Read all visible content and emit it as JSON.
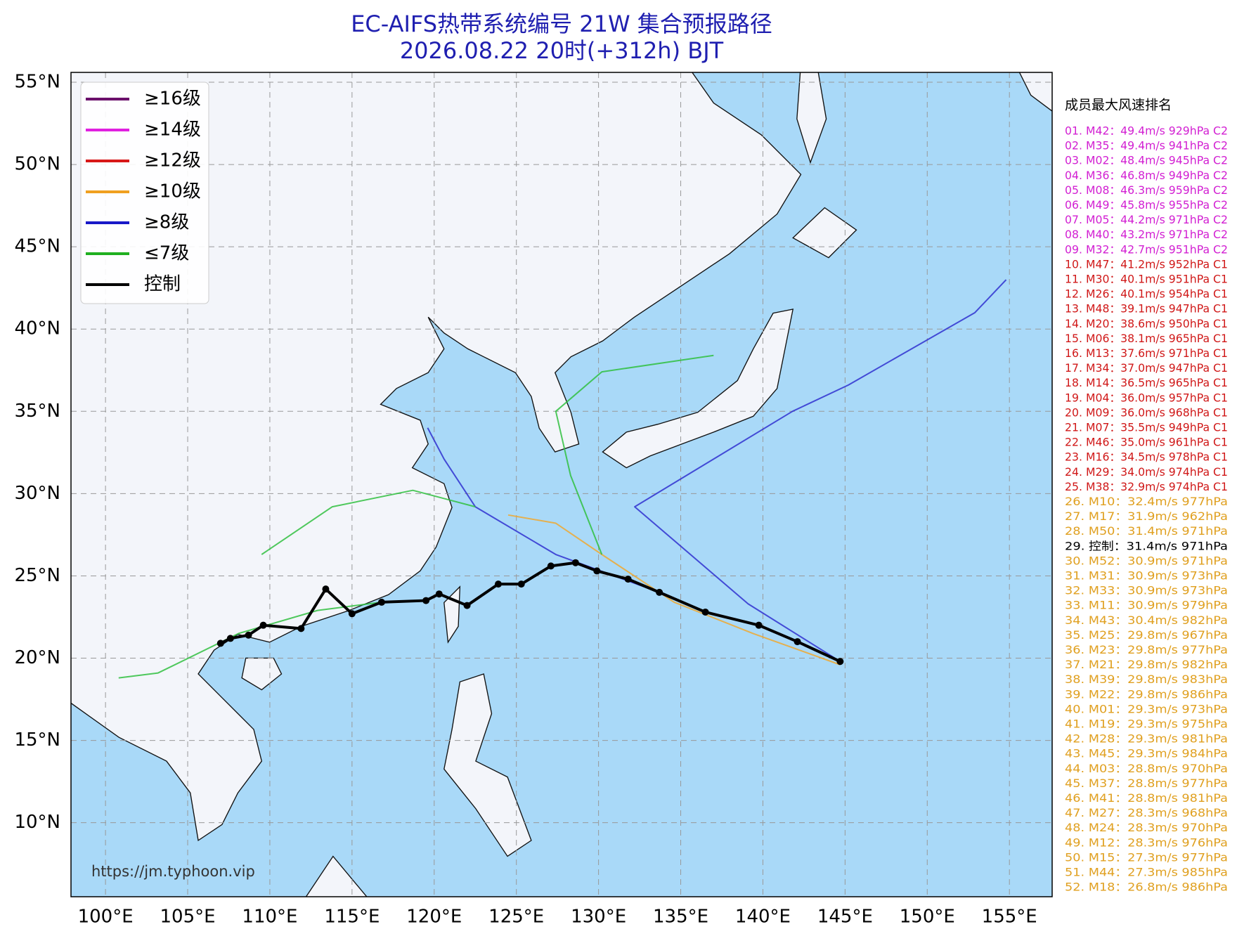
{
  "chart_data": {
    "type": "track",
    "title": "EC-AIFS热带系统编号 21W 集合预报路径",
    "subtitle": "2026.08.22 20时(+312h) BJT",
    "xlim": [
      97.9,
      157.6
    ],
    "ylim": [
      5.5,
      55.6
    ],
    "xticks": [
      {
        "value": 100,
        "label": "100°E"
      },
      {
        "value": 105,
        "label": "105°E"
      },
      {
        "value": 110,
        "label": "110°E"
      },
      {
        "value": 115,
        "label": "115°E"
      },
      {
        "value": 120,
        "label": "120°E"
      },
      {
        "value": 125,
        "label": "125°E"
      },
      {
        "value": 130,
        "label": "130°E"
      },
      {
        "value": 135,
        "label": "135°E"
      },
      {
        "value": 140,
        "label": "140°E"
      },
      {
        "value": 145,
        "label": "145°E"
      },
      {
        "value": 150,
        "label": "150°E"
      },
      {
        "value": 155,
        "label": "155°E"
      }
    ],
    "yticks": [
      {
        "value": 10,
        "label": "10°N"
      },
      {
        "value": 15,
        "label": "15°N"
      },
      {
        "value": 20,
        "label": "20°N"
      },
      {
        "value": 25,
        "label": "25°N"
      },
      {
        "value": 30,
        "label": "30°N"
      },
      {
        "value": 35,
        "label": "35°N"
      },
      {
        "value": 40,
        "label": "40°N"
      },
      {
        "value": 45,
        "label": "45°N"
      },
      {
        "value": 50,
        "label": "50°N"
      },
      {
        "value": 55,
        "label": "55°N"
      }
    ],
    "grid": true,
    "legend_entries": [
      {
        "name": "≥16级",
        "color": "#6b0f6b"
      },
      {
        "name": "≥14级",
        "color": "#e020e0"
      },
      {
        "name": "≥12级",
        "color": "#d81818"
      },
      {
        "name": "≥10级",
        "color": "#f0a020"
      },
      {
        "name": "≥8级",
        "color": "#1818c8"
      },
      {
        "name": "≤7级",
        "color": "#20b020"
      },
      {
        "name": "控制",
        "color": "#000000"
      }
    ],
    "series": [
      {
        "color": "#3030d0",
        "x": [
          144.7,
          139.1,
          132.2,
          141.8,
          145.2,
          152.9,
          154.8
        ],
        "values": [
          19.8,
          23.3,
          29.2,
          35.0,
          36.6,
          41.0,
          43.0
        ]
      },
      {
        "color": "#f0a830",
        "x": [
          144.7,
          139.4,
          134.6,
          130.2,
          127.4,
          124.5
        ],
        "values": [
          19.6,
          21.5,
          23.4,
          26.3,
          28.2,
          28.7
        ]
      },
      {
        "color": "#30c040",
        "x": [
          130.2,
          128.3,
          127.4,
          130.2,
          137.0
        ],
        "values": [
          26.3,
          31.1,
          35.0,
          37.4,
          38.4
        ]
      },
      {
        "color": "#30c040",
        "x": [
          116.8,
          112.9,
          108.1,
          103.2,
          100.8
        ],
        "values": [
          23.4,
          22.9,
          21.5,
          19.1,
          18.8
        ]
      },
      {
        "color": "#3030d0",
        "x": [
          133.7,
          127.4,
          122.5,
          120.6,
          119.6
        ],
        "values": [
          24.0,
          26.3,
          29.2,
          32.1,
          34.0
        ]
      },
      {
        "color": "#30c040",
        "x": [
          122.5,
          118.7,
          113.8,
          109.5
        ],
        "values": [
          29.2,
          30.2,
          29.2,
          26.3
        ]
      },
      {
        "name": "控制",
        "color": "#000000",
        "x": [
          144.7,
          142.1,
          139.75,
          136.5,
          133.7,
          131.8,
          129.9,
          128.6,
          127.1,
          125.3,
          123.9,
          122,
          120.3,
          119.5,
          116.8,
          115,
          113.4,
          111.9,
          109.6,
          108.7,
          107.6,
          107
        ],
        "values": [
          19.8,
          21.0,
          22.0,
          22.8,
          24.0,
          24.8,
          25.3,
          25.8,
          25.6,
          24.5,
          24.5,
          23.2,
          23.9,
          23.5,
          23.4,
          22.7,
          24.2,
          21.8,
          22.0,
          21.4,
          21.2,
          20.9
        ]
      }
    ],
    "source": "https://jm.typhoon.vip",
    "ranking": {
      "title": "成员最大风速排名",
      "items": [
        {
          "text": "01. M42：49.4m/s 929hPa C2",
          "color": "#d21fd2"
        },
        {
          "text": "02. M35：49.4m/s 941hPa C2",
          "color": "#d21fd2"
        },
        {
          "text": "03. M02：48.4m/s 945hPa C2",
          "color": "#d21fd2"
        },
        {
          "text": "04. M36：46.8m/s 949hPa C2",
          "color": "#d21fd2"
        },
        {
          "text": "05. M08：46.3m/s 959hPa C2",
          "color": "#d21fd2"
        },
        {
          "text": "06. M49：45.8m/s 955hPa C2",
          "color": "#d21fd2"
        },
        {
          "text": "07. M05：44.2m/s 971hPa C2",
          "color": "#d21fd2"
        },
        {
          "text": "08. M40：43.2m/s 971hPa C2",
          "color": "#d21fd2"
        },
        {
          "text": "09. M32：42.7m/s 951hPa C2",
          "color": "#d21fd2"
        },
        {
          "text": "10. M47：41.2m/s 952hPa C1",
          "color": "#d01818"
        },
        {
          "text": "11. M30：40.1m/s 951hPa C1",
          "color": "#d01818"
        },
        {
          "text": "12. M26：40.1m/s 954hPa C1",
          "color": "#d01818"
        },
        {
          "text": "13. M48：39.1m/s 947hPa C1",
          "color": "#d01818"
        },
        {
          "text": "14. M20：38.6m/s 950hPa C1",
          "color": "#d01818"
        },
        {
          "text": "15. M06：38.1m/s 965hPa C1",
          "color": "#d01818"
        },
        {
          "text": "16. M13：37.6m/s 971hPa C1",
          "color": "#d01818"
        },
        {
          "text": "17. M34：37.0m/s 947hPa C1",
          "color": "#d01818"
        },
        {
          "text": "18. M14：36.5m/s 965hPa C1",
          "color": "#d01818"
        },
        {
          "text": "19. M04：36.0m/s 957hPa C1",
          "color": "#d01818"
        },
        {
          "text": "20. M09：36.0m/s 968hPa C1",
          "color": "#d01818"
        },
        {
          "text": "21. M07：35.5m/s 949hPa C1",
          "color": "#d01818"
        },
        {
          "text": "22. M46：35.0m/s 961hPa C1",
          "color": "#d01818"
        },
        {
          "text": "23. M16：34.5m/s 978hPa C1",
          "color": "#d01818"
        },
        {
          "text": "24. M29：34.0m/s 974hPa C1",
          "color": "#d01818"
        },
        {
          "text": "25. M38：32.9m/s 974hPa C1",
          "color": "#d01818"
        },
        {
          "text": "26. M10：32.4m/s 977hPa",
          "color": "#e0a020"
        },
        {
          "text": "27. M17：31.9m/s 962hPa",
          "color": "#e0a020"
        },
        {
          "text": "28. M50：31.4m/s 971hPa",
          "color": "#e0a020"
        },
        {
          "text": "29. 控制：31.4m/s 971hPa",
          "color": "#000000"
        },
        {
          "text": "30. M52：30.9m/s 971hPa",
          "color": "#e0a020"
        },
        {
          "text": "31. M31：30.9m/s 973hPa",
          "color": "#e0a020"
        },
        {
          "text": "32. M33：30.9m/s 973hPa",
          "color": "#e0a020"
        },
        {
          "text": "33. M11：30.9m/s 979hPa",
          "color": "#e0a020"
        },
        {
          "text": "34. M43：30.4m/s 982hPa",
          "color": "#e0a020"
        },
        {
          "text": "35. M25：29.8m/s 967hPa",
          "color": "#e0a020"
        },
        {
          "text": "36. M23：29.8m/s 977hPa",
          "color": "#e0a020"
        },
        {
          "text": "37. M21：29.8m/s 982hPa",
          "color": "#e0a020"
        },
        {
          "text": "38. M39：29.8m/s 983hPa",
          "color": "#e0a020"
        },
        {
          "text": "39. M22：29.8m/s 986hPa",
          "color": "#e0a020"
        },
        {
          "text": "40. M01：29.3m/s 973hPa",
          "color": "#e0a020"
        },
        {
          "text": "41. M19：29.3m/s 975hPa",
          "color": "#e0a020"
        },
        {
          "text": "42. M28：29.3m/s 981hPa",
          "color": "#e0a020"
        },
        {
          "text": "43. M45：29.3m/s 984hPa",
          "color": "#e0a020"
        },
        {
          "text": "44. M03：28.8m/s 970hPa",
          "color": "#e0a020"
        },
        {
          "text": "45. M37：28.8m/s 977hPa",
          "color": "#e0a020"
        },
        {
          "text": "46. M41：28.8m/s 981hPa",
          "color": "#e0a020"
        },
        {
          "text": "47. M27：28.3m/s 968hPa",
          "color": "#e0a020"
        },
        {
          "text": "48. M24：28.3m/s 970hPa",
          "color": "#e0a020"
        },
        {
          "text": "49. M12：28.3m/s 976hPa",
          "color": "#e0a020"
        },
        {
          "text": "50. M15：27.3m/s 977hPa",
          "color": "#e0a020"
        },
        {
          "text": "51. M44：27.3m/s 985hPa",
          "color": "#e0a020"
        },
        {
          "text": "52. M18：26.8m/s 986hPa",
          "color": "#e0a020"
        }
      ]
    }
  }
}
